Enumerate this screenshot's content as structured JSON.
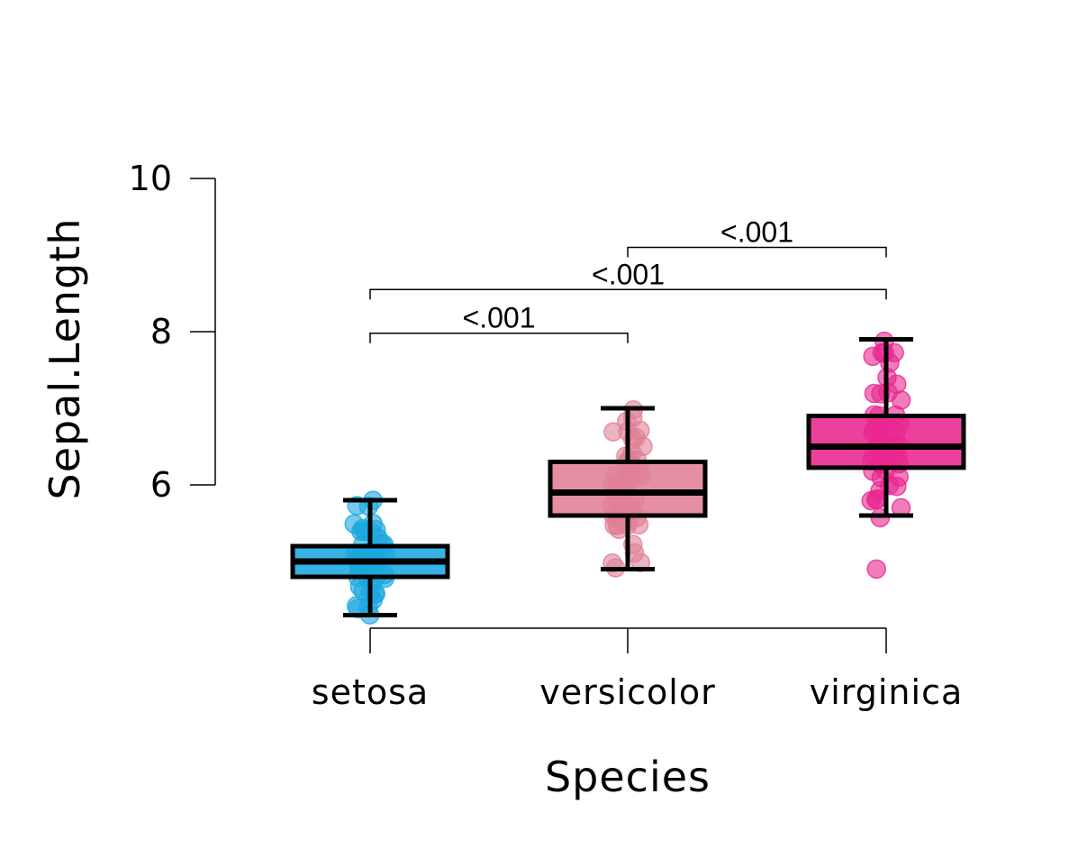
{
  "chart_data": {
    "type": "box",
    "xlabel": "Species",
    "ylabel": "Sepal.Length",
    "ylim": [
      4.15,
      10
    ],
    "y_ticks": [
      6,
      8,
      10
    ],
    "y_tick_labels": [
      "6",
      "8",
      "10"
    ],
    "categories": [
      "setosa",
      "versicolor",
      "virginica"
    ],
    "colors": [
      "#1aa7df",
      "#e08096",
      "#e8278f"
    ],
    "boxes": [
      {
        "category": "setosa",
        "min": 4.3,
        "q1": 4.8,
        "median": 5.0,
        "q3": 5.2,
        "max": 5.8
      },
      {
        "category": "versicolor",
        "min": 4.9,
        "q1": 5.6,
        "median": 5.9,
        "q3": 6.3,
        "max": 7.0
      },
      {
        "category": "virginica",
        "min": 5.6,
        "q1": 6.225,
        "median": 6.5,
        "q3": 6.9,
        "max": 7.9
      }
    ],
    "points": [
      {
        "category": "setosa",
        "values": [
          4.3,
          4.4,
          4.4,
          4.4,
          4.5,
          4.6,
          4.6,
          4.6,
          4.6,
          4.7,
          4.7,
          4.8,
          4.8,
          4.8,
          4.8,
          4.8,
          4.9,
          4.9,
          4.9,
          4.9,
          5.0,
          5.0,
          5.0,
          5.0,
          5.0,
          5.0,
          5.0,
          5.0,
          5.1,
          5.1,
          5.1,
          5.1,
          5.1,
          5.1,
          5.1,
          5.1,
          5.2,
          5.2,
          5.2,
          5.3,
          5.4,
          5.4,
          5.4,
          5.4,
          5.4,
          5.5,
          5.5,
          5.7,
          5.7,
          5.8
        ]
      },
      {
        "category": "versicolor",
        "values": [
          4.9,
          5.0,
          5.0,
          5.1,
          5.2,
          5.4,
          5.5,
          5.5,
          5.5,
          5.5,
          5.5,
          5.6,
          5.6,
          5.6,
          5.6,
          5.6,
          5.7,
          5.7,
          5.7,
          5.7,
          5.7,
          5.8,
          5.8,
          5.8,
          5.9,
          5.9,
          6.0,
          6.0,
          6.0,
          6.0,
          6.1,
          6.1,
          6.1,
          6.1,
          6.2,
          6.2,
          6.3,
          6.3,
          6.3,
          6.4,
          6.4,
          6.5,
          6.6,
          6.6,
          6.7,
          6.7,
          6.7,
          6.8,
          6.9,
          7.0
        ]
      },
      {
        "category": "virginica",
        "values": [
          4.9,
          5.6,
          5.7,
          5.8,
          5.8,
          5.8,
          5.9,
          6.0,
          6.0,
          6.1,
          6.1,
          6.2,
          6.2,
          6.3,
          6.3,
          6.3,
          6.3,
          6.3,
          6.3,
          6.4,
          6.4,
          6.4,
          6.4,
          6.4,
          6.5,
          6.5,
          6.5,
          6.5,
          6.7,
          6.7,
          6.7,
          6.7,
          6.7,
          6.8,
          6.8,
          6.9,
          6.9,
          6.9,
          7.1,
          7.2,
          7.2,
          7.2,
          7.3,
          7.4,
          7.6,
          7.7,
          7.7,
          7.7,
          7.7,
          7.9
        ]
      }
    ],
    "comparisons": [
      {
        "from": "setosa",
        "to": "versicolor",
        "label": "<.001",
        "y": 7.98
      },
      {
        "from": "setosa",
        "to": "virginica",
        "label": "<.001",
        "y": 8.55
      },
      {
        "from": "versicolor",
        "to": "virginica",
        "label": "<.001",
        "y": 9.1
      }
    ]
  }
}
